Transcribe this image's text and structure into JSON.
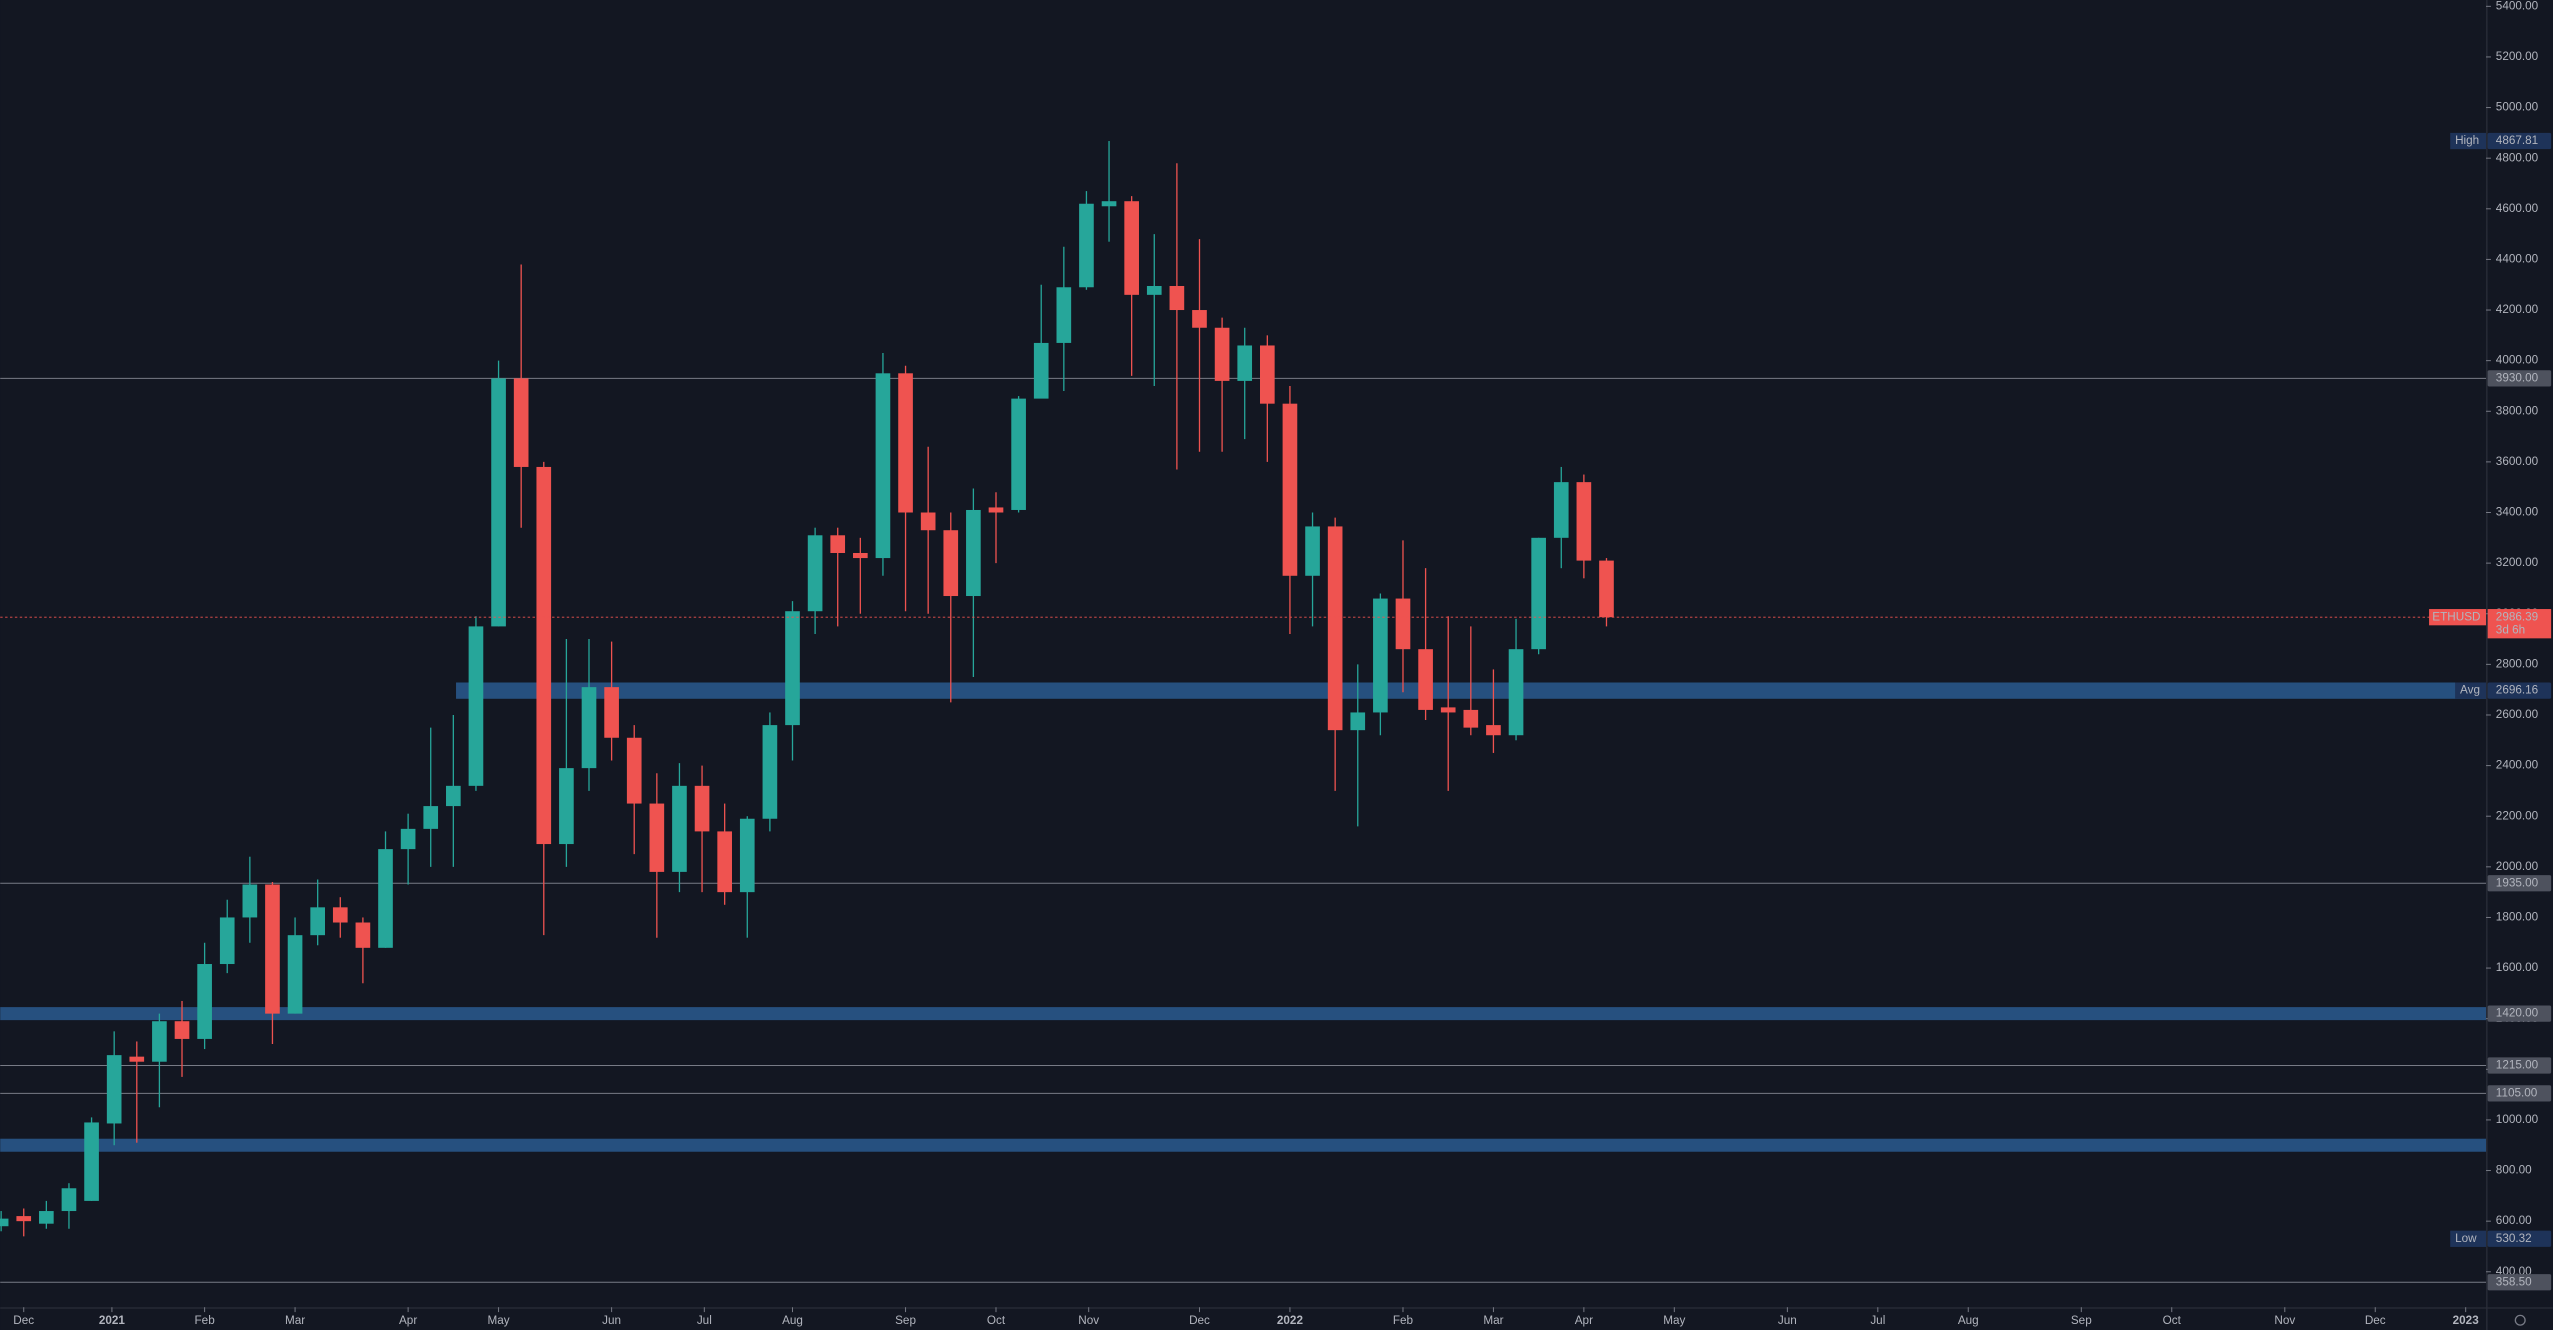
{
  "chart_data": {
    "type": "candlestick",
    "categories": [
      null,
      null,
      null,
      null,
      null,
      null,
      null,
      null,
      null,
      null,
      null,
      null,
      null,
      null,
      null,
      null,
      null,
      null,
      null,
      null,
      null,
      null,
      null,
      null,
      null,
      null,
      null,
      null,
      null,
      null,
      null,
      null,
      null,
      null,
      null,
      null,
      null,
      null,
      null,
      null,
      null,
      null,
      null,
      null,
      null,
      null,
      null,
      null,
      null,
      null,
      null,
      null,
      null,
      null,
      null,
      null,
      null,
      null,
      null,
      null,
      null,
      null,
      null,
      null,
      null,
      null,
      null,
      null,
      null,
      null,
      null,
      null
    ],
    "series": {
      "up_color": "#26a69a",
      "down_color": "#ef5350",
      "open": [
        580,
        620,
        590,
        640,
        680,
        986,
        1250,
        1230,
        1390,
        1320,
        1616,
        1800,
        1930,
        1420,
        1730,
        1840,
        1780,
        1680,
        2070,
        2150,
        2240,
        2320,
        2950,
        3930,
        3580,
        2090,
        2390,
        2710,
        2510,
        2250,
        1980,
        2320,
        2140,
        1900,
        2190,
        2560,
        3010,
        3310,
        3240,
        3220,
        3950,
        3400,
        3330,
        3070,
        3420,
        3410,
        3850,
        4070,
        4290,
        4610,
        4630,
        4260,
        4295,
        4200,
        4130,
        3920,
        4060,
        3830,
        3150,
        3345,
        2540,
        2610,
        3060,
        2860,
        2630,
        2620,
        2560,
        2520,
        2860,
        3300,
        3520,
        3210
      ],
      "high": [
        640,
        650,
        680,
        750,
        1010,
        1350,
        1310,
        1420,
        1470,
        1700,
        1870,
        2040,
        1940,
        1800,
        1950,
        1880,
        1800,
        2140,
        2210,
        2550,
        2600,
        2990,
        4000,
        4380,
        3600,
        2900,
        2900,
        2890,
        2560,
        2370,
        2410,
        2400,
        2250,
        2200,
        2610,
        3050,
        3340,
        3340,
        3300,
        4030,
        3980,
        3660,
        3400,
        3495,
        3480,
        3860,
        4300,
        4450,
        4670,
        4867.81,
        4650,
        4500,
        4780,
        4480,
        4170,
        4130,
        4100,
        3900,
        3400,
        3380,
        2800,
        3080,
        3290,
        3180,
        2990,
        2950,
        2780,
        2980,
        3300,
        3580,
        3550,
        3220
      ],
      "low": [
        560,
        540,
        570,
        570,
        680,
        900,
        910,
        1050,
        1170,
        1280,
        1580,
        1700,
        1300,
        1420,
        1690,
        1720,
        1540,
        1680,
        1930,
        2000,
        2000,
        2300,
        2950,
        3340,
        1730,
        2000,
        2300,
        2420,
        2050,
        1720,
        1900,
        1900,
        1850,
        1720,
        2140,
        2420,
        2920,
        2950,
        3000,
        3150,
        3010,
        3000,
        2650,
        2750,
        3200,
        3400,
        3880,
        3880,
        4280,
        4470,
        3940,
        3900,
        3570,
        3640,
        3640,
        3690,
        3600,
        2920,
        2950,
        2300,
        2160,
        2520,
        2690,
        2580,
        2300,
        2520,
        2450,
        2500,
        2840,
        3180,
        3140,
        2950
      ],
      "close": [
        610,
        600,
        640,
        730,
        990,
        1256,
        1230,
        1390,
        1320,
        1616,
        1800,
        1930,
        1420,
        1730,
        1840,
        1780,
        1680,
        2070,
        2150,
        2240,
        2320,
        2950,
        3930,
        3580,
        2090,
        2390,
        2710,
        2510,
        2250,
        1980,
        2320,
        2140,
        1900,
        2190,
        2560,
        3010,
        3310,
        3240,
        3220,
        3950,
        3400,
        3330,
        3070,
        3410,
        3400,
        3850,
        4070,
        4290,
        4620,
        4630,
        4260,
        4295,
        4200,
        4130,
        3920,
        4060,
        3830,
        3150,
        3345,
        2540,
        2610,
        3060,
        2860,
        2620,
        2610,
        2550,
        2520,
        2860,
        3300,
        3520,
        3210,
        2986.39
      ]
    },
    "ylim": [
      260,
      5425
    ],
    "yticks": [
      {
        "value": 400,
        "label": "400.00"
      },
      {
        "value": 600,
        "label": "600.00"
      },
      {
        "value": 800,
        "label": "800.00"
      },
      {
        "value": 1000,
        "label": "1000.00"
      },
      {
        "value": 1200,
        "label": "1200.00"
      },
      {
        "value": 1400,
        "label": "1400.00"
      },
      {
        "value": 1600,
        "label": "1600.00"
      },
      {
        "value": 1800,
        "label": "1800.00"
      },
      {
        "value": 2000,
        "label": "2000.00"
      },
      {
        "value": 2200,
        "label": "2200.00"
      },
      {
        "value": 2400,
        "label": "2400.00"
      },
      {
        "value": 2600,
        "label": "2600.00"
      },
      {
        "value": 2800,
        "label": "2800.00"
      },
      {
        "value": 3000,
        "label": "3000.00"
      },
      {
        "value": 3200,
        "label": "3200.00"
      },
      {
        "value": 3400,
        "label": "3400.00"
      },
      {
        "value": 3600,
        "label": "3600.00"
      },
      {
        "value": 3800,
        "label": "3800.00"
      },
      {
        "value": 4000,
        "label": "4000.00"
      },
      {
        "value": 4200,
        "label": "4200.00"
      },
      {
        "value": 4400,
        "label": "4400.00"
      },
      {
        "value": 4600,
        "label": "4600.00"
      },
      {
        "value": 4800,
        "label": "4800.00"
      },
      {
        "value": 5000,
        "label": "5000.00"
      },
      {
        "value": 5200,
        "label": "5200.00"
      },
      {
        "value": 5400,
        "label": "5400.00"
      }
    ],
    "xlim": [
      -0.04,
      109.9
    ],
    "xticks": [
      {
        "value": 1.0,
        "label": "Dec"
      },
      {
        "value": 4.9,
        "label": "2021"
      },
      {
        "value": 9.0,
        "label": "Feb"
      },
      {
        "value": 13.0,
        "label": "Mar"
      },
      {
        "value": 18.0,
        "label": "Apr"
      },
      {
        "value": 22.0,
        "label": "May"
      },
      {
        "value": 27.0,
        "label": "Jun"
      },
      {
        "value": 31.1,
        "label": "Jul"
      },
      {
        "value": 35.0,
        "label": "Aug"
      },
      {
        "value": 40.0,
        "label": "Sep"
      },
      {
        "value": 44.0,
        "label": "Oct"
      },
      {
        "value": 48.1,
        "label": "Nov"
      },
      {
        "value": 53.0,
        "label": "Dec"
      },
      {
        "value": 57.0,
        "label": "2022"
      },
      {
        "value": 62.0,
        "label": "Feb"
      },
      {
        "value": 66.0,
        "label": "Mar"
      },
      {
        "value": 70.0,
        "label": "Apr"
      },
      {
        "value": 74.0,
        "label": "May"
      },
      {
        "value": 79.0,
        "label": "Jun"
      },
      {
        "value": 83.0,
        "label": "Jul"
      },
      {
        "value": 87.0,
        "label": "Aug"
      },
      {
        "value": 92.0,
        "label": "Sep"
      },
      {
        "value": 96.0,
        "label": "Oct"
      },
      {
        "value": 101.0,
        "label": "Nov"
      },
      {
        "value": 105.0,
        "label": "Dec"
      },
      {
        "value": 109.0,
        "label": "2023"
      }
    ],
    "levels": [
      {
        "value": 3930,
        "label": "3930.00",
        "style": "line"
      },
      {
        "value": 1935,
        "label": "1935.00",
        "style": "line"
      },
      {
        "value": 1420,
        "label": "1420.00",
        "style": "band"
      },
      {
        "value": 1215,
        "label": "1215.00",
        "style": "line"
      },
      {
        "value": 1105,
        "label": "1105.00",
        "style": "line"
      },
      {
        "value": 900,
        "style": "band"
      },
      {
        "value": 358.5,
        "label": "358.50",
        "style": "line"
      }
    ],
    "high": {
      "name": "High",
      "value": 4867.81
    },
    "low": {
      "name": "Low",
      "value": 530.32
    },
    "average": {
      "name": "Avg",
      "value": 2696.16
    },
    "last": {
      "name": "ETHUSD",
      "value": 2986.39,
      "countdown": "3d 6h"
    }
  }
}
